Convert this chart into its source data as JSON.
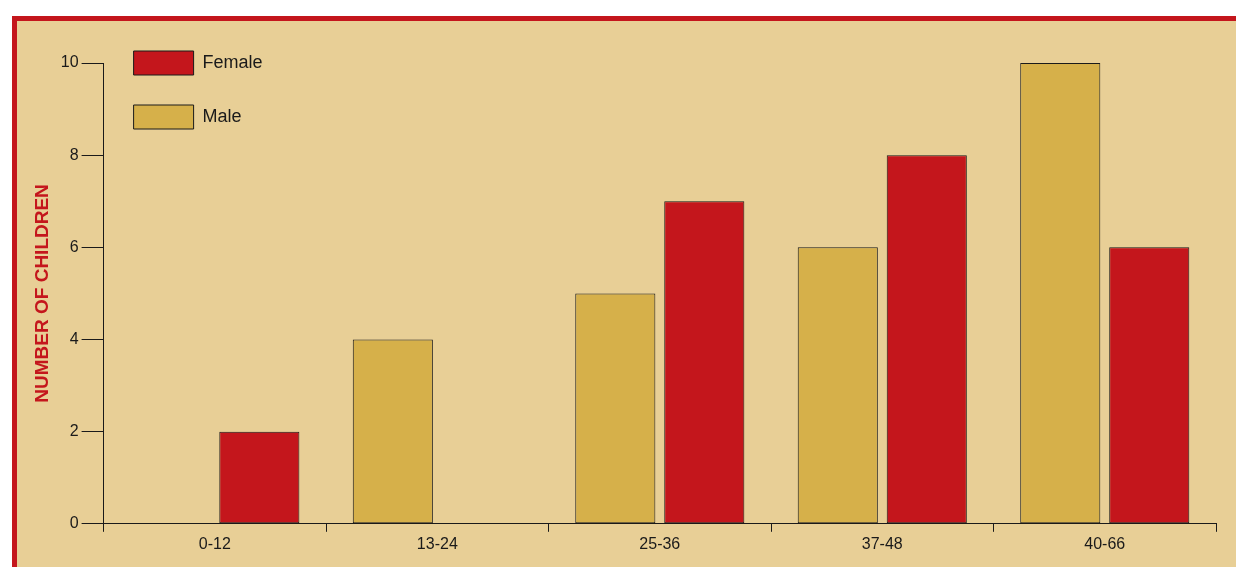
{
  "chart_data": {
    "type": "bar",
    "ylabel": "NUMBER OF CHILDREN",
    "categories": [
      "0-12",
      "13-24",
      "25-36",
      "37-48",
      "40-66"
    ],
    "series": [
      {
        "name": "Male",
        "color": "#d6b04a",
        "values": [
          0,
          4,
          5,
          6,
          10
        ]
      },
      {
        "name": "Female",
        "color": "#c4161c",
        "values": [
          2,
          0,
          7,
          8,
          6
        ]
      }
    ],
    "ylim": [
      0,
      10
    ],
    "yticks": [
      0,
      2,
      4,
      6,
      8,
      10
    ],
    "grid": false,
    "legend": "top left"
  }
}
